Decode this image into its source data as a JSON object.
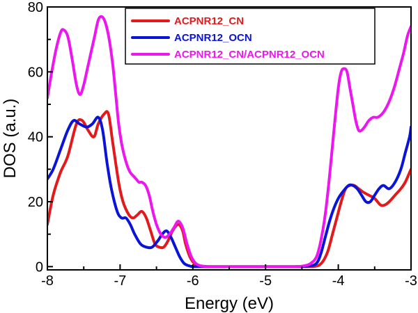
{
  "chart_data": {
    "type": "line",
    "title": "",
    "xlabel": "Energy (eV)",
    "ylabel": "DOS (a.u.)",
    "xlim": [
      -8,
      -3
    ],
    "ylim": [
      -1,
      80
    ],
    "x_ticks": [
      -8,
      -7,
      -6,
      -5,
      -4,
      -3
    ],
    "x_tick_labels": [
      "-8",
      "-7",
      "-6",
      "-5",
      "-4",
      "-3"
    ],
    "y_ticks": [
      0,
      20,
      40,
      60,
      80
    ],
    "y_tick_labels": [
      "0",
      "20",
      "40",
      "60",
      "80"
    ],
    "grid": false,
    "legend_position": "top-right",
    "series": [
      {
        "name": "ACPNR12_CN",
        "color": "#e31a1c",
        "x": [
          -8.0,
          -7.92,
          -7.82,
          -7.72,
          -7.6,
          -7.52,
          -7.44,
          -7.36,
          -7.3,
          -7.22,
          -7.16,
          -7.1,
          -7.02,
          -6.96,
          -6.88,
          -6.82,
          -6.76,
          -6.7,
          -6.64,
          -6.58,
          -6.52,
          -6.46,
          -6.4,
          -6.34,
          -6.28,
          -6.2,
          -6.14,
          -6.1,
          -6.04,
          -5.98,
          -5.92,
          -5.86,
          -5.8,
          -5.7,
          -5.5,
          -5.0,
          -4.6,
          -4.4,
          -4.32,
          -4.26,
          -4.2,
          -4.14,
          -4.08,
          -4.02,
          -3.96,
          -3.9,
          -3.84,
          -3.78,
          -3.72,
          -3.66,
          -3.58,
          -3.5,
          -3.42,
          -3.36,
          -3.3,
          -3.22,
          -3.14,
          -3.08,
          -3.02,
          -3.0
        ],
        "y": [
          13,
          22,
          29,
          34,
          44,
          45,
          42,
          40,
          44,
          47,
          47,
          38,
          26,
          20,
          16,
          15,
          16,
          17,
          15,
          11,
          7,
          6,
          6,
          8,
          11,
          13,
          11,
          7,
          3,
          1,
          0.3,
          0.1,
          0,
          0,
          0,
          0,
          0,
          0,
          0.1,
          0.5,
          2,
          5,
          10,
          15,
          20,
          24,
          25,
          25,
          24,
          23,
          22,
          21,
          19,
          19,
          20,
          22,
          24,
          26,
          29,
          30
        ]
      },
      {
        "name": "ACPNR12_OCN",
        "color": "#0a14d8",
        "x": [
          -8.0,
          -7.92,
          -7.82,
          -7.72,
          -7.64,
          -7.56,
          -7.46,
          -7.38,
          -7.3,
          -7.24,
          -7.18,
          -7.12,
          -7.04,
          -6.98,
          -6.92,
          -6.86,
          -6.8,
          -6.72,
          -6.64,
          -6.56,
          -6.48,
          -6.42,
          -6.36,
          -6.3,
          -6.24,
          -6.18,
          -6.12,
          -6.06,
          -6.0,
          -5.9,
          -5.8,
          -5.6,
          -5.0,
          -4.6,
          -4.4,
          -4.3,
          -4.24,
          -4.18,
          -4.12,
          -4.06,
          -4.0,
          -3.94,
          -3.86,
          -3.8,
          -3.74,
          -3.68,
          -3.62,
          -3.56,
          -3.5,
          -3.44,
          -3.38,
          -3.3,
          -3.22,
          -3.14,
          -3.08,
          -3.02,
          -3.0
        ],
        "y": [
          27,
          30,
          36,
          42,
          45,
          44,
          43,
          44,
          46,
          42,
          32,
          24,
          17,
          15,
          15,
          13,
          10,
          7,
          6,
          6,
          8,
          10,
          11,
          9,
          6,
          3,
          1,
          0.3,
          0,
          0,
          0,
          0,
          0,
          0,
          0.2,
          1,
          4,
          9,
          14,
          18,
          21,
          23,
          25,
          25,
          24,
          22,
          20,
          20,
          22,
          24,
          25,
          24,
          26,
          30,
          35,
          40,
          43
        ]
      },
      {
        "name": "ACPNR12_CN/ACPNR12_OCN",
        "color": "#ee16ee",
        "x": [
          -8.0,
          -7.94,
          -7.88,
          -7.82,
          -7.78,
          -7.72,
          -7.66,
          -7.6,
          -7.55,
          -7.5,
          -7.45,
          -7.4,
          -7.35,
          -7.3,
          -7.25,
          -7.2,
          -7.15,
          -7.1,
          -7.06,
          -7.02,
          -6.98,
          -6.94,
          -6.9,
          -6.86,
          -6.82,
          -6.78,
          -6.74,
          -6.7,
          -6.65,
          -6.6,
          -6.55,
          -6.5,
          -6.44,
          -6.38,
          -6.32,
          -6.26,
          -6.2,
          -6.14,
          -6.08,
          -6.02,
          -5.96,
          -5.9,
          -5.84,
          -5.78,
          -5.7,
          -5.5,
          -5.0,
          -4.6,
          -4.46,
          -4.38,
          -4.3,
          -4.24,
          -4.18,
          -4.12,
          -4.06,
          -4.0,
          -3.96,
          -3.92,
          -3.88,
          -3.84,
          -3.8,
          -3.76,
          -3.72,
          -3.68,
          -3.64,
          -3.58,
          -3.52,
          -3.46,
          -3.4,
          -3.34,
          -3.28,
          -3.22,
          -3.16,
          -3.1,
          -3.05,
          -3.0
        ],
        "y": [
          52,
          60,
          67,
          72,
          73,
          71,
          64,
          56,
          53,
          56,
          61,
          66,
          71,
          76,
          77,
          75,
          70,
          62,
          53,
          44,
          38,
          34,
          31,
          29,
          28,
          27,
          26,
          26,
          25,
          22,
          17,
          13,
          10,
          9,
          10,
          12,
          14,
          12,
          7,
          3,
          1,
          0.3,
          0.1,
          0,
          0,
          0,
          0,
          0,
          0.3,
          1,
          3,
          8,
          16,
          28,
          42,
          55,
          60,
          61,
          60,
          55,
          50,
          45,
          42,
          42,
          43,
          45,
          46,
          46,
          47,
          49,
          52,
          56,
          61,
          66,
          71,
          74
        ]
      }
    ]
  }
}
